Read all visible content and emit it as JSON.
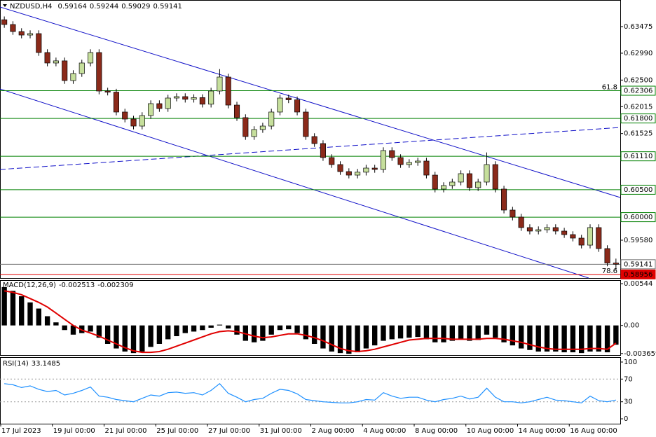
{
  "chart_data": [
    {
      "type": "candlestick",
      "title": "NZDUSD,H4",
      "categories": [
        "17 Jul 2023",
        null,
        null,
        null,
        null,
        null,
        "19 Jul 00:00",
        null,
        null,
        null,
        null,
        null,
        "21 Jul 00:00",
        null,
        null,
        null,
        null,
        null,
        "25 Jul 00:00",
        null,
        null,
        null,
        null,
        null,
        "27 Jul 00:00",
        null,
        null,
        null,
        null,
        null,
        "31 Jul 00:00",
        null,
        null,
        null,
        null,
        null,
        "2 Aug 00:00",
        null,
        null,
        null,
        null,
        null,
        "4 Aug 00:00",
        null,
        null,
        null,
        null,
        null,
        "8 Aug 00:00",
        null,
        null,
        null,
        null,
        null,
        "10 Aug 00:00",
        null,
        null,
        null,
        null,
        null,
        "14 Aug 00:00",
        null,
        null,
        null,
        null,
        null,
        "16 Aug 00:00",
        null,
        null,
        null,
        null,
        null
      ],
      "open": [
        0.636,
        0.63513,
        0.63385,
        0.63321,
        0.63347,
        0.63002,
        0.62811,
        0.6285,
        0.62491,
        0.62619,
        0.62811,
        0.63002,
        0.623,
        0.6228,
        0.61917,
        0.61789,
        0.61661,
        0.61853,
        0.6207,
        0.61981,
        0.62172,
        0.62198,
        0.6215,
        0.6218,
        0.6206,
        0.623,
        0.62555,
        0.62044,
        0.61815,
        0.6147,
        0.61598,
        0.61661,
        0.61917,
        0.62172,
        0.6214,
        0.61917,
        0.6147,
        0.61342,
        0.61087,
        0.60959,
        0.60831,
        0.60767,
        0.6082,
        0.60895,
        0.6087,
        0.61214,
        0.61087,
        0.60959,
        0.60997,
        0.61023,
        0.60767,
        0.60512,
        0.60576,
        0.6064,
        0.60793,
        0.60538,
        0.6064,
        0.60959,
        0.60512,
        0.60129,
        0.60001,
        0.5981,
        0.59746,
        0.59771,
        0.5981,
        0.59746,
        0.59682,
        0.59618,
        0.5949,
        0.5981,
        0.59427,
        0.59164
      ],
      "high": [
        0.6366,
        0.63573,
        0.63445,
        0.63407,
        0.63407,
        0.63062,
        0.6291,
        0.6291,
        0.62679,
        0.62871,
        0.63062,
        0.63062,
        0.6236,
        0.6234,
        0.61977,
        0.61849,
        0.61913,
        0.6213,
        0.6213,
        0.62232,
        0.62258,
        0.62258,
        0.6224,
        0.6224,
        0.6236,
        0.627,
        0.62615,
        0.62104,
        0.61875,
        0.61658,
        0.61721,
        0.61977,
        0.62232,
        0.62232,
        0.622,
        0.61977,
        0.6153,
        0.61402,
        0.61147,
        0.61019,
        0.60891,
        0.6088,
        0.60955,
        0.60955,
        0.61274,
        0.61274,
        0.61147,
        0.61057,
        0.61083,
        0.61083,
        0.60827,
        0.60636,
        0.607,
        0.60853,
        0.60853,
        0.607,
        0.6118,
        0.61019,
        0.60572,
        0.60189,
        0.60061,
        0.5987,
        0.59831,
        0.5987,
        0.5987,
        0.59806,
        0.59742,
        0.59678,
        0.5987,
        0.5987,
        0.59487,
        0.59244
      ],
      "low": [
        0.63453,
        0.63325,
        0.63261,
        0.63261,
        0.62942,
        0.62751,
        0.62751,
        0.62431,
        0.62431,
        0.62559,
        0.62751,
        0.6224,
        0.6222,
        0.61857,
        0.61729,
        0.61601,
        0.61601,
        0.61793,
        0.61921,
        0.61921,
        0.62112,
        0.6209,
        0.6209,
        0.62,
        0.62,
        0.6224,
        0.61984,
        0.61755,
        0.6141,
        0.6141,
        0.61538,
        0.61601,
        0.61857,
        0.6208,
        0.61857,
        0.6141,
        0.61282,
        0.61027,
        0.60899,
        0.60771,
        0.60707,
        0.60707,
        0.6076,
        0.6081,
        0.6081,
        0.61027,
        0.60899,
        0.60899,
        0.60937,
        0.60707,
        0.60452,
        0.60452,
        0.60516,
        0.6058,
        0.60478,
        0.60478,
        0.6058,
        0.60452,
        0.60069,
        0.59941,
        0.5975,
        0.59686,
        0.59686,
        0.59711,
        0.59686,
        0.59622,
        0.59558,
        0.5943,
        0.5943,
        0.59367,
        0.59104,
        0.59029
      ],
      "close": [
        0.63513,
        0.63385,
        0.63321,
        0.63347,
        0.63002,
        0.62811,
        0.6285,
        0.62491,
        0.62619,
        0.62811,
        0.63002,
        0.623,
        0.6228,
        0.61917,
        0.61789,
        0.61661,
        0.61853,
        0.6207,
        0.61981,
        0.62172,
        0.62198,
        0.6215,
        0.6218,
        0.6206,
        0.623,
        0.62555,
        0.62044,
        0.61815,
        0.6147,
        0.61598,
        0.61661,
        0.61917,
        0.62172,
        0.6214,
        0.61917,
        0.6147,
        0.61342,
        0.61087,
        0.60959,
        0.60831,
        0.60767,
        0.6082,
        0.60895,
        0.6087,
        0.61214,
        0.61087,
        0.60959,
        0.60997,
        0.61023,
        0.60767,
        0.60512,
        0.60576,
        0.6064,
        0.60793,
        0.60538,
        0.6064,
        0.60959,
        0.60512,
        0.60129,
        0.60001,
        0.5981,
        0.59746,
        0.59771,
        0.5981,
        0.59746,
        0.59682,
        0.59618,
        0.5949,
        0.5981,
        0.59427,
        0.59164,
        0.59141
      ],
      "up_color": "#c6df9c",
      "down_color": "#8b2a1a",
      "ylim": [
        0.5889,
        0.6396
      ],
      "yticks": [
        0.63475,
        {
          "value": 0.6299,
          "label": "0.62990"
        },
        {
          "value": 0.625,
          "label": "0.62500"
        },
        0.62015,
        0.61525,
        {
          "value": 0.5958,
          "label": "0.59580"
        }
      ],
      "levels": [
        {
          "value": 0.62306,
          "color": "#008000",
          "fib": "61.8"
        },
        {
          "value": 0.618,
          "label": "0.61800",
          "color": "#008000"
        },
        {
          "value": 0.6111,
          "label": "0.61110",
          "color": "#008000"
        },
        {
          "value": 0.605,
          "label": "0.60500",
          "color": "#008000"
        },
        {
          "value": 0.6,
          "label": "0.60000",
          "color": "#008000"
        },
        {
          "value": 0.59141,
          "color": "#707070"
        },
        {
          "value": 0.58956,
          "color": "#e00000",
          "fib": "78.6"
        }
      ]
    },
    {
      "type": "macd",
      "title": "MACD(12,26,9)",
      "series": [
        {
          "color": "#000000",
          "values": [
            0.005,
            0.0045,
            0.0038,
            0.003,
            0.0022,
            0.0012,
            0.0004,
            -0.0006,
            -0.0012,
            -0.001,
            -0.0008,
            -0.0016,
            -0.0024,
            -0.003,
            -0.0034,
            -0.0036,
            -0.0034,
            -0.0028,
            -0.0024,
            -0.0018,
            -0.0014,
            -0.001,
            -0.0008,
            -0.0006,
            -0.0003,
            0.0001,
            -0.0004,
            -0.0012,
            -0.002,
            -0.0022,
            -0.002,
            -0.0012,
            -0.0006,
            -0.0005,
            -0.001,
            -0.0018,
            -0.0024,
            -0.003,
            -0.0034,
            -0.0036,
            -0.0037,
            -0.0035,
            -0.003,
            -0.0026,
            -0.002,
            -0.0018,
            -0.0017,
            -0.0016,
            -0.0015,
            -0.0018,
            -0.0022,
            -0.0022,
            -0.002,
            -0.0018,
            -0.002,
            -0.0019,
            -0.0012,
            -0.0016,
            -0.0022,
            -0.0026,
            -0.003,
            -0.0032,
            -0.0034,
            -0.0034,
            -0.0034,
            -0.0035,
            -0.0035,
            -0.0036,
            -0.0034,
            -0.0034,
            -0.0035,
            -0.002513
          ]
        },
        {
          "color": "#e00000",
          "values": [
            0.0045,
            0.0043,
            0.004,
            0.0035,
            0.003,
            0.0024,
            0.0016,
            0.0008,
            0.0,
            -0.0006,
            -0.001,
            -0.0014,
            -0.0019,
            -0.0024,
            -0.0029,
            -0.0033,
            -0.0035,
            -0.0035,
            -0.0034,
            -0.0031,
            -0.0027,
            -0.0023,
            -0.0019,
            -0.0015,
            -0.0011,
            -0.0008,
            -0.0007,
            -0.0008,
            -0.0011,
            -0.0014,
            -0.0016,
            -0.0015,
            -0.0013,
            -0.0011,
            -0.0011,
            -0.0013,
            -0.0016,
            -0.002,
            -0.0025,
            -0.003,
            -0.0033,
            -0.0034,
            -0.0033,
            -0.0031,
            -0.0028,
            -0.0025,
            -0.0022,
            -0.0019,
            -0.0018,
            -0.0017,
            -0.0017,
            -0.0017,
            -0.0018,
            -0.0018,
            -0.0018,
            -0.0018,
            -0.0017,
            -0.0017,
            -0.0018,
            -0.002,
            -0.0022,
            -0.0025,
            -0.0028,
            -0.003,
            -0.0031,
            -0.0031,
            -0.0031,
            -0.0031,
            -0.003,
            -0.003,
            -0.0031,
            -0.002309
          ]
        }
      ],
      "ylim": [
        -0.00386,
        0.0059
      ],
      "yticks": [
        0.00544,
        {
          "value": 0,
          "label": "0.00"
        },
        -0.003659
      ]
    },
    {
      "type": "line",
      "title": "RSI(14)",
      "color": "#1e90ff",
      "values": [
        62,
        60,
        55,
        58,
        52,
        48,
        50,
        42,
        45,
        50,
        56,
        40,
        38,
        34,
        32,
        30,
        36,
        42,
        40,
        46,
        47,
        45,
        46,
        42,
        50,
        62,
        45,
        38,
        30,
        34,
        36,
        45,
        52,
        50,
        44,
        34,
        32,
        30,
        29,
        28,
        28,
        30,
        34,
        33,
        46,
        40,
        36,
        38,
        38,
        33,
        30,
        34,
        36,
        40,
        35,
        38,
        54,
        38,
        30,
        30,
        28,
        30,
        34,
        38,
        33,
        32,
        30,
        28,
        40,
        32,
        30,
        33.1485
      ],
      "ylim": [
        -8.6,
        108.6
      ],
      "yticks": [
        100,
        70,
        30,
        0
      ],
      "levels": [
        70,
        30
      ]
    }
  ]
}
